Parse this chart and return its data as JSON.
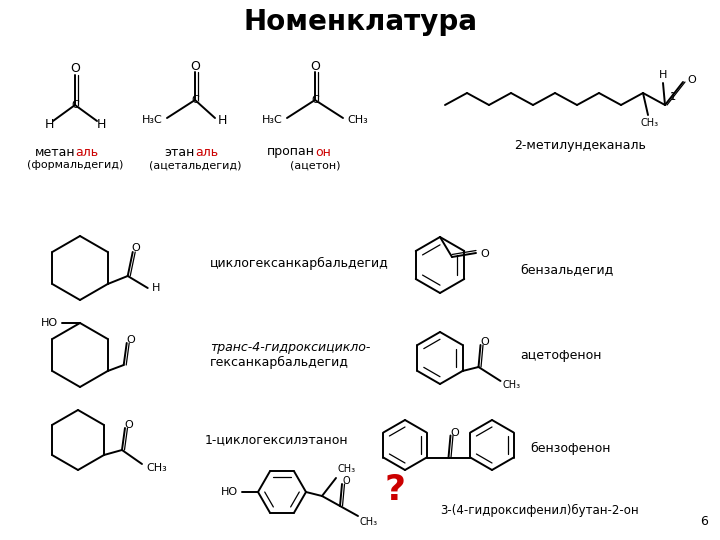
{
  "title": "Номенклатура",
  "title_fontsize": 20,
  "bg_color": "#ffffff",
  "lc": "#000000",
  "rc": "#cc0000",
  "lw": 1.4,
  "lw_thin": 0.9,
  "labels": {
    "methylundecanal": "2-метилундеканаль",
    "cyclohexanecarbaldehyde": "циклогексанкарбальдегид",
    "trans_hydroxy1": "транс-4-гидроксицикло-",
    "trans_hydroxy2": "гексанкарбальдегид",
    "cyclohexyl_ethanone": "1-циклогексилэтанон",
    "benzaldehyde": "бензальдегид",
    "acetophenone": "ацетофенон",
    "benzophenone": "бензофенон",
    "question": "?",
    "hydroxy_phenyl": "3-(4-гидроксифенил)бутан-2-он",
    "slide_number": "6"
  },
  "methanal_prefix": "метан",
  "methanal_suffix": "аль",
  "methanal_paren": "(формальдегид)",
  "ethanal_prefix": "этан",
  "ethanal_suffix": "аль",
  "ethanal_paren": "(ацетальдегид)",
  "propanon_prefix": "пропан",
  "propanon_suffix": "он",
  "propanon_paren": "(ацетон)"
}
